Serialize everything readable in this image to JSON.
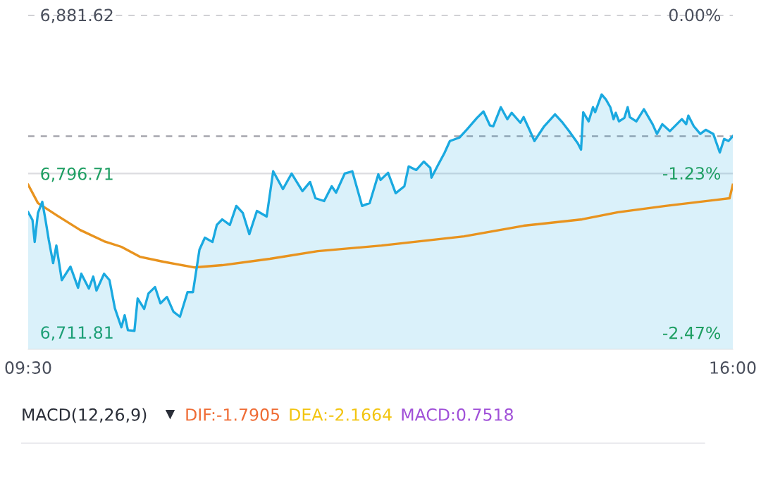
{
  "chart_data": [
    {
      "type": "line",
      "x": [
        9.5,
        9.54,
        9.56,
        9.59,
        9.63,
        9.66,
        9.69,
        9.73,
        9.76,
        9.81,
        9.89,
        9.96,
        9.99,
        10.06,
        10.1,
        10.13,
        10.2,
        10.25,
        10.3,
        10.36,
        10.39,
        10.42,
        10.48,
        10.51,
        10.57,
        10.61,
        10.67,
        10.72,
        10.78,
        10.84,
        10.9,
        10.97,
        11.02,
        11.08,
        11.13,
        11.2,
        11.24,
        11.29,
        11.36,
        11.42,
        11.48,
        11.54,
        11.61,
        11.7,
        11.76,
        11.85,
        11.93,
        12.03,
        12.1,
        12.15,
        12.23,
        12.3,
        12.34,
        12.42,
        12.49,
        12.58,
        12.65,
        12.73,
        12.75,
        12.82,
        12.89,
        12.97,
        13.01,
        13.08,
        13.15,
        13.21,
        13.22,
        13.28,
        13.34,
        13.39,
        13.48,
        13.55,
        13.64,
        13.7,
        13.76,
        13.79,
        13.86,
        13.92,
        13.96,
        14.04,
        14.07,
        14.13,
        14.17,
        14.26,
        14.36,
        14.43,
        14.49,
        14.57,
        14.6,
        14.62,
        14.67,
        14.71,
        14.73,
        14.79,
        14.83,
        14.87,
        14.9,
        14.92,
        14.95,
        15.0,
        15.03,
        15.05,
        15.11,
        15.18,
        15.26,
        15.3,
        15.35,
        15.42,
        15.53,
        15.57,
        15.59,
        15.64,
        15.7,
        15.75,
        15.82,
        15.88,
        15.92,
        15.96,
        16.0
      ],
      "series": [
        {
          "type": "area",
          "color": "#1aa9e0",
          "values": [
            6776.0,
            6771.8,
            6760.1,
            6775.6,
            6781.6,
            6771.8,
            6761.2,
            6748.8,
            6758.2,
            6739.7,
            6746.9,
            6735.6,
            6743.1,
            6735.2,
            6741.6,
            6734.1,
            6743.1,
            6739.7,
            6724.6,
            6714.5,
            6720.9,
            6712.9,
            6712.6,
            6729.9,
            6724.3,
            6732.6,
            6736.0,
            6727.3,
            6730.7,
            6722.8,
            6720.1,
            6733.3,
            6733.3,
            6756.0,
            6762.4,
            6760.1,
            6769.2,
            6772.2,
            6769.2,
            6779.4,
            6775.6,
            6764.3,
            6776.7,
            6773.7,
            6797.9,
            6788.4,
            6796.7,
            6787.3,
            6792.2,
            6783.5,
            6782.0,
            6789.9,
            6786.5,
            6796.7,
            6797.9,
            6779.4,
            6780.9,
            6796.3,
            6793.3,
            6797.1,
            6786.2,
            6789.9,
            6800.5,
            6798.6,
            6803.1,
            6799.7,
            6794.5,
            6801.2,
            6807.7,
            6814.1,
            6816.0,
            6820.5,
            6826.5,
            6829.9,
            6822.4,
            6822.0,
            6832.2,
            6825.8,
            6829.2,
            6823.9,
            6826.9,
            6819.4,
            6814.1,
            6822.0,
            6828.4,
            6823.9,
            6819.4,
            6812.9,
            6809.5,
            6829.5,
            6824.6,
            6832.2,
            6829.5,
            6839.0,
            6836.3,
            6832.2,
            6825.8,
            6829.2,
            6824.6,
            6826.5,
            6832.2,
            6826.9,
            6824.6,
            6831.1,
            6823.1,
            6817.9,
            6823.1,
            6819.4,
            6825.8,
            6823.1,
            6827.7,
            6822.0,
            6817.9,
            6820.1,
            6817.9,
            6808.0,
            6815.2,
            6814.1,
            6816.7
          ]
        },
        {
          "type": "line",
          "color": "#e8931e",
          "x": [
            9.5,
            9.59,
            9.77,
            9.98,
            10.2,
            10.36,
            10.53,
            10.75,
            11.03,
            11.29,
            11.73,
            12.17,
            12.76,
            13.52,
            14.07,
            14.61,
            14.94,
            15.38,
            15.97,
            16.0
          ],
          "values": [
            6790.7,
            6780.9,
            6774.1,
            6766.5,
            6760.5,
            6757.5,
            6752.2,
            6749.5,
            6746.5,
            6747.7,
            6751.1,
            6755.2,
            6758.2,
            6763.1,
            6768.8,
            6772.2,
            6776.0,
            6779.4,
            6783.5,
            6790.7
          ]
        }
      ],
      "xlim": [
        9.5,
        16.0
      ],
      "xticks": [
        {
          "value": 9.5,
          "label": "09:30"
        },
        {
          "value": 16.0,
          "label": "16:00"
        }
      ],
      "ylim": [
        6702.7,
        6881.62
      ],
      "yticks": [
        {
          "value": 6881.62,
          "label": "6,881.62"
        },
        {
          "value": 6796.71,
          "label": "6,796.71"
        },
        {
          "value": 6711.81,
          "label": "6,711.81"
        }
      ],
      "y2lim": [
        -2.6,
        0.0
      ],
      "y2ticks": [
        {
          "value": 0.0,
          "label": "0.00%"
        },
        {
          "value": -1.23,
          "label": "-1.23%"
        },
        {
          "value": -2.47,
          "label": "-2.47%"
        }
      ],
      "ref_lines": [
        {
          "axis": "y",
          "value": 6881.62,
          "color": "#a0a0a8",
          "line_style": "dashed"
        },
        {
          "axis": "y",
          "value": 6816.7,
          "color": "#a0a0a8",
          "line_style": "dashed"
        },
        {
          "axis": "y",
          "value": 6796.71,
          "color": "#dcdce0",
          "line_style": "solid"
        }
      ],
      "grid": false
    },
    {
      "type": "other",
      "title": "MACD(12,26,9)",
      "annotations": [
        "DIF:-1.7905",
        "DEA:-2.1664",
        "MACD:0.7518"
      ]
    }
  ]
}
